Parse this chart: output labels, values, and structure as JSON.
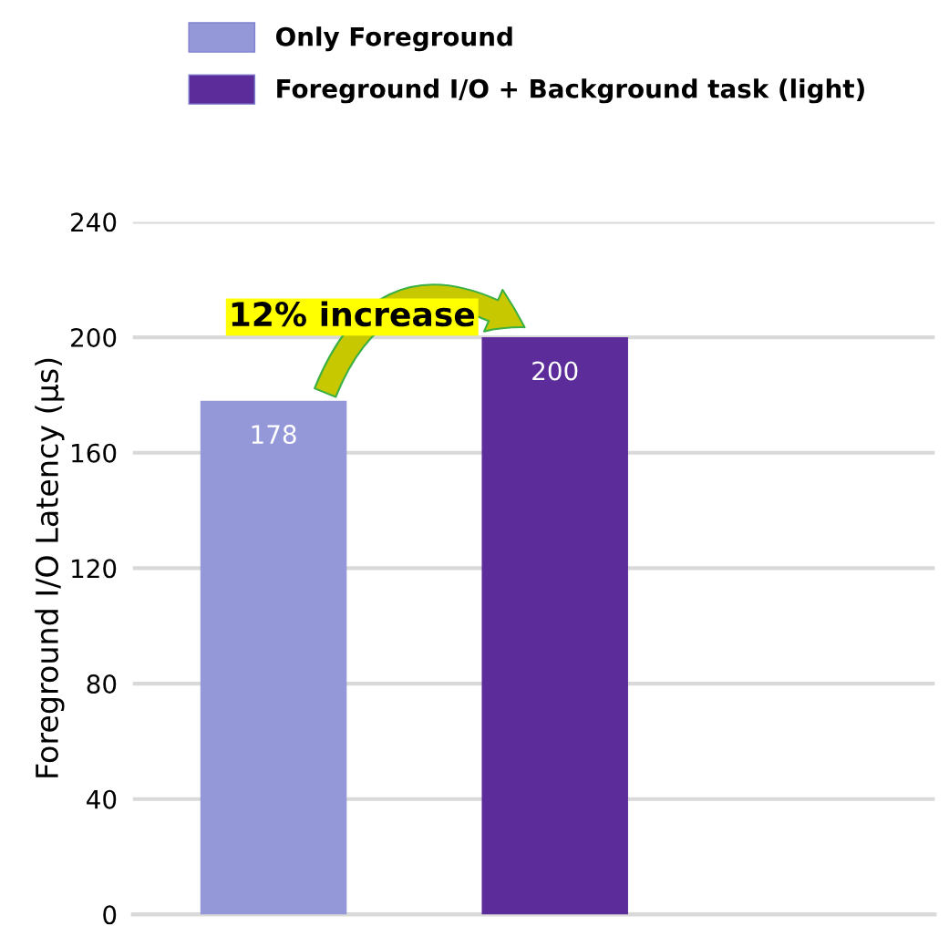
{
  "chart_data": {
    "type": "bar",
    "categories": [
      null,
      null
    ],
    "series": [
      {
        "name": "Only Foreground",
        "color": "#9598d8",
        "values": [
          178,
          null
        ]
      },
      {
        "name": "Foreground I/O + Background task (light)",
        "color": "#5c2d9a",
        "values": [
          null,
          200
        ]
      }
    ],
    "ylabel": "Foreground I/O Latency (μs)",
    "ylim": [
      0,
      240
    ],
    "yticks": [
      0,
      40,
      80,
      120,
      160,
      200,
      240
    ],
    "grid": "y",
    "legend": "top",
    "data_labels": true,
    "annotations": [
      "12% increase"
    ]
  }
}
